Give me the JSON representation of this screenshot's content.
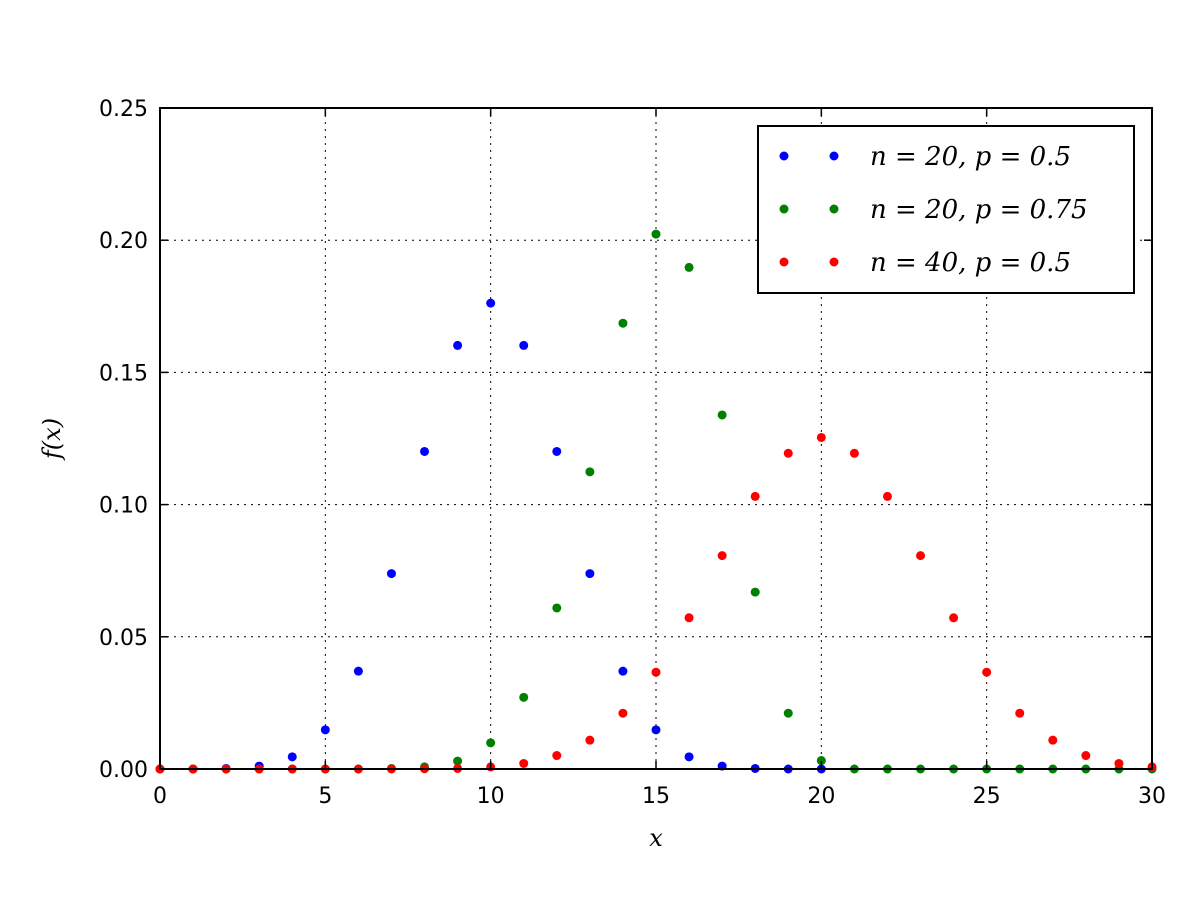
{
  "chart_data": {
    "type": "scatter",
    "title": "",
    "xlabel": "x",
    "ylabel": "f(x)",
    "xlim": [
      0,
      30
    ],
    "ylim": [
      0,
      0.25
    ],
    "xticks": [
      0,
      5,
      10,
      15,
      20,
      25,
      30
    ],
    "xtick_labels": [
      "0",
      "5",
      "10",
      "15",
      "20",
      "25",
      "30"
    ],
    "yticks": [
      0,
      0.05,
      0.1,
      0.15,
      0.2,
      0.25
    ],
    "ytick_labels": [
      "0.00",
      "0.05",
      "0.10",
      "0.15",
      "0.20",
      "0.25"
    ],
    "grid": true,
    "legend_position": "top-right",
    "series": [
      {
        "name": "n = 20, p = 0.5",
        "color": "#0000ff",
        "x": [
          0,
          1,
          2,
          3,
          4,
          5,
          6,
          7,
          8,
          9,
          10,
          11,
          12,
          13,
          14,
          15,
          16,
          17,
          18,
          19,
          20
        ],
        "y": [
          0.0,
          0.0,
          0.0002,
          0.0011,
          0.0046,
          0.0148,
          0.037,
          0.0739,
          0.1201,
          0.1602,
          0.1762,
          0.1602,
          0.1201,
          0.0739,
          0.037,
          0.0148,
          0.0046,
          0.0011,
          0.0002,
          0.0,
          0.0
        ]
      },
      {
        "name": "n = 20, p = 0.75",
        "color": "#008000",
        "x": [
          0,
          1,
          2,
          3,
          4,
          5,
          6,
          7,
          8,
          9,
          10,
          11,
          12,
          13,
          14,
          15,
          16,
          17,
          18,
          19,
          20,
          21,
          22,
          23,
          24,
          25,
          26,
          27,
          28,
          29,
          30
        ],
        "y": [
          0.0,
          0.0,
          0.0,
          0.0,
          0.0,
          0.0,
          0.0,
          0.0002,
          0.0008,
          0.003,
          0.0099,
          0.0271,
          0.0609,
          0.1124,
          0.1686,
          0.2023,
          0.1897,
          0.1339,
          0.0669,
          0.0211,
          0.0032,
          0.0,
          0.0,
          0.0,
          0.0,
          0.0,
          0.0,
          0.0,
          0.0,
          0.0,
          0.0
        ]
      },
      {
        "name": "n = 40, p = 0.5",
        "color": "#ff0000",
        "x": [
          0,
          1,
          2,
          3,
          4,
          5,
          6,
          7,
          8,
          9,
          10,
          11,
          12,
          13,
          14,
          15,
          16,
          17,
          18,
          19,
          20,
          21,
          22,
          23,
          24,
          25,
          26,
          27,
          28,
          29,
          30
        ],
        "y": [
          0.0,
          0.0,
          0.0,
          0.0,
          0.0,
          0.0,
          0.0,
          0.0,
          0.0001,
          0.0002,
          0.0008,
          0.0021,
          0.0051,
          0.0109,
          0.0211,
          0.0366,
          0.0572,
          0.0807,
          0.1031,
          0.1194,
          0.1254,
          0.1194,
          0.1031,
          0.0807,
          0.0572,
          0.0366,
          0.0211,
          0.0109,
          0.0051,
          0.0021,
          0.0008
        ]
      }
    ]
  }
}
